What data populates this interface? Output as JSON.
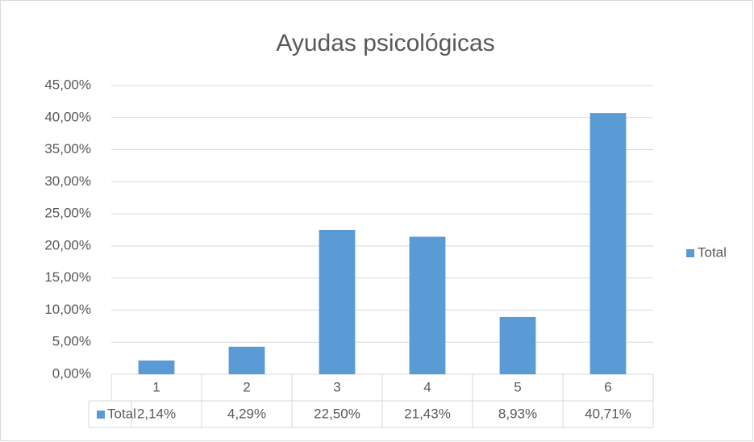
{
  "chart_data": {
    "type": "bar",
    "title": "Ayudas psicológicas",
    "categories": [
      "1",
      "2",
      "3",
      "4",
      "5",
      "6"
    ],
    "series": [
      {
        "name": "Total",
        "color": "#5b9bd5",
        "values": [
          2.14,
          4.29,
          22.5,
          21.43,
          8.93,
          40.71
        ],
        "value_labels": [
          "2,14%",
          "4,29%",
          "22,50%",
          "21,43%",
          "8,93%",
          "40,71%"
        ]
      }
    ],
    "ylim": [
      0,
      45
    ],
    "yticks": [
      {
        "value": 0,
        "label": "0,00%"
      },
      {
        "value": 5,
        "label": "5,00%"
      },
      {
        "value": 10,
        "label": "10,00%"
      },
      {
        "value": 15,
        "label": "15,00%"
      },
      {
        "value": 20,
        "label": "20,00%"
      },
      {
        "value": 25,
        "label": "25,00%"
      },
      {
        "value": 30,
        "label": "30,00%"
      },
      {
        "value": 35,
        "label": "35,00%"
      },
      {
        "value": 40,
        "label": "40,00%"
      },
      {
        "value": 45,
        "label": "45,00%"
      }
    ],
    "grid": true,
    "legend": "right"
  }
}
